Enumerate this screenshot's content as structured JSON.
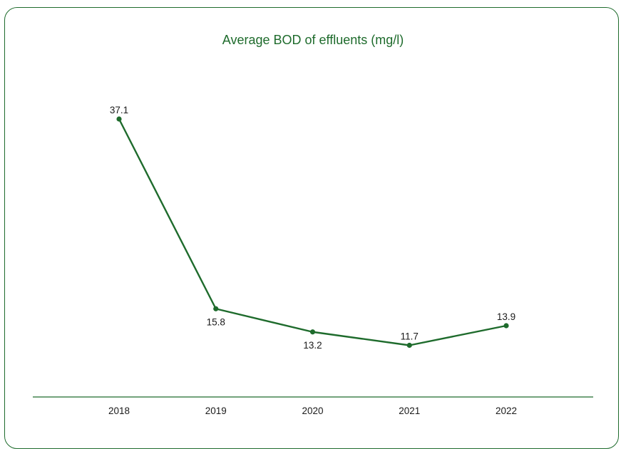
{
  "chart_data": {
    "type": "line",
    "title": "Average BOD of effluents (mg/l)",
    "xlabel": "",
    "ylabel": "",
    "categories": [
      "2018",
      "2019",
      "2020",
      "2021",
      "2022"
    ],
    "series": [
      {
        "values": [
          37.1,
          15.8,
          13.2,
          11.7,
          13.9
        ],
        "color": "#1e6b2c"
      }
    ],
    "data_labels": [
      "37.1",
      "15.8",
      "13.2",
      "11.7",
      "13.9"
    ],
    "grid": false,
    "legend": "none"
  },
  "colors": {
    "accent": "#1e6b2c",
    "text": "#1a1a1a"
  }
}
